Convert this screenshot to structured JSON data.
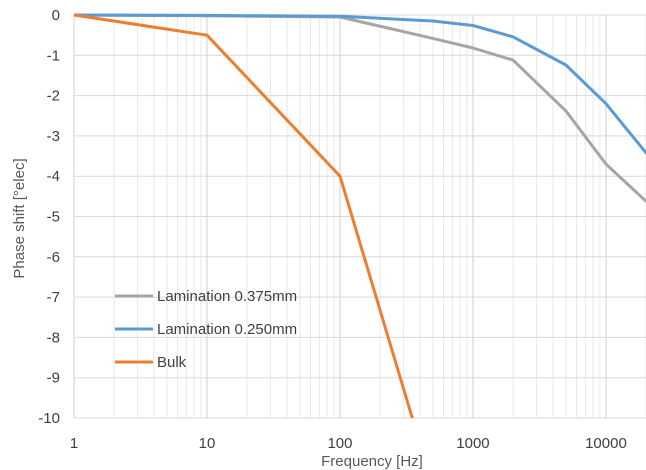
{
  "chart_data": {
    "type": "line",
    "title": "",
    "xlabel": "Frequency [Hz]",
    "ylabel": "Phase shift [°elec]",
    "xscale": "log",
    "xlim": [
      1,
      20000
    ],
    "ylim": [
      -10,
      0
    ],
    "grid": true,
    "legend_position": "lower-left",
    "x_ticks": [
      "1",
      "10",
      "100",
      "1000",
      "10000"
    ],
    "y_ticks": [
      "0",
      "-1",
      "-2",
      "-3",
      "-4",
      "-5",
      "-6",
      "-7",
      "-8",
      "-9",
      "-10"
    ],
    "series": [
      {
        "name": "Lamination 0.375mm",
        "color": "#a5a5a5",
        "x": [
          1,
          10,
          100,
          500,
          1000,
          2000,
          5000,
          10000,
          20000
        ],
        "y": [
          0,
          -0.02,
          -0.05,
          -0.58,
          -0.82,
          -1.12,
          -2.38,
          -3.7,
          -4.62
        ]
      },
      {
        "name": "Lamination 0.250mm",
        "color": "#5b9bd5",
        "x": [
          1,
          10,
          100,
          500,
          1000,
          2000,
          5000,
          10000,
          20000
        ],
        "y": [
          0,
          -0.01,
          -0.03,
          -0.15,
          -0.26,
          -0.54,
          -1.24,
          -2.2,
          -3.42
        ]
      },
      {
        "name": "Bulk",
        "color": "#ed7d31",
        "x": [
          1,
          10,
          100,
          350
        ],
        "y": [
          0,
          -0.5,
          -4.0,
          -10
        ]
      }
    ]
  }
}
